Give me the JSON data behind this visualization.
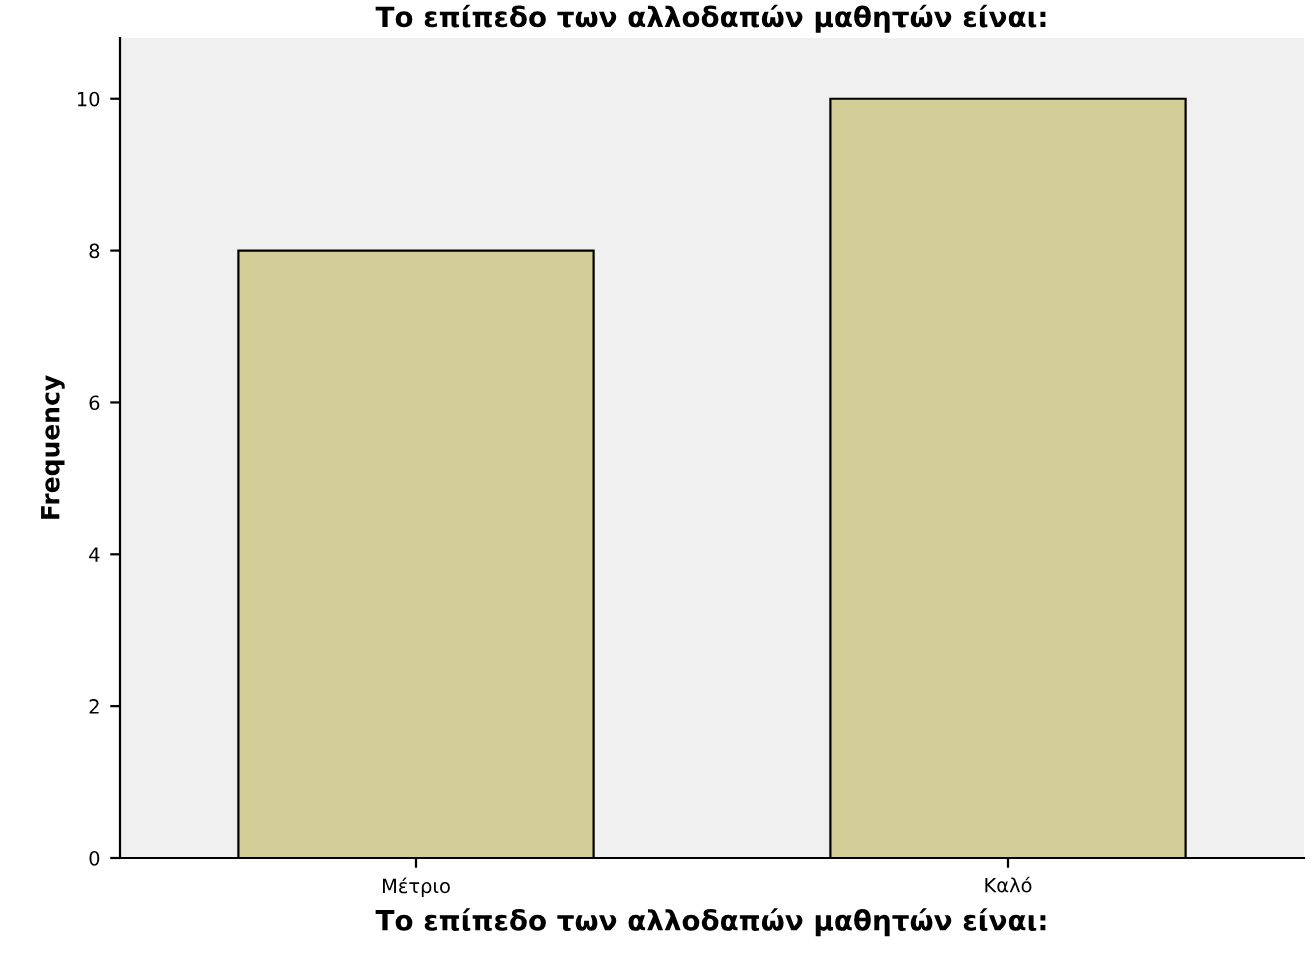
{
  "chart_data": {
    "type": "bar",
    "title": "Το επίπεδο των αλλοδαπών μαθητών είναι:",
    "xlabel": "Το επίπεδο των αλλοδαπών μαθητών είναι:",
    "ylabel": "Frequency",
    "categories": [
      "Μέτριο",
      "Καλό"
    ],
    "values": [
      8,
      10
    ],
    "color": "#d3ce97",
    "ylim": [
      0,
      10.8
    ],
    "yticks": [
      0,
      2,
      4,
      6,
      8,
      10
    ],
    "grid": false
  }
}
